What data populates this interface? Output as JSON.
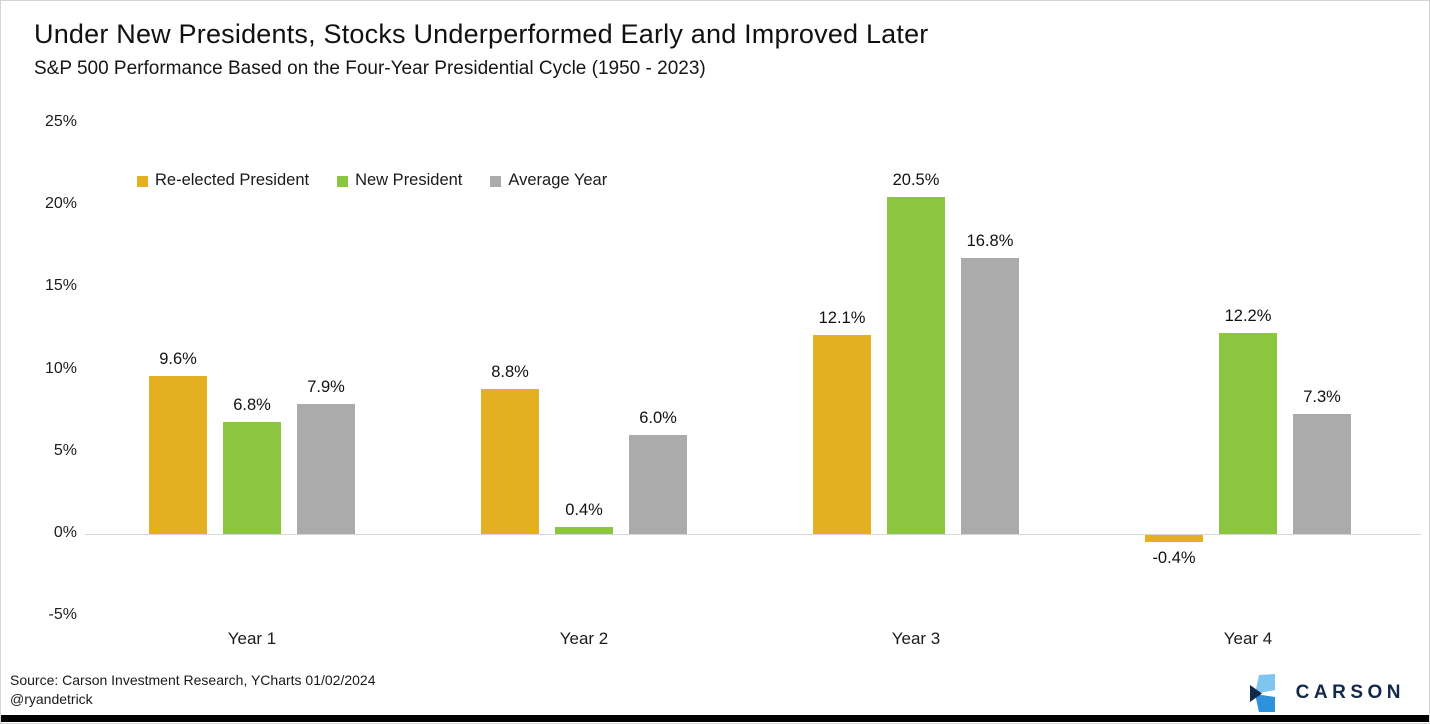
{
  "chart_data": {
    "type": "bar",
    "title": "Under New Presidents, Stocks Underperformed Early and Improved Later",
    "subtitle": "S&P 500 Performance Based on the Four-Year Presidential Cycle (1950 - 2023)",
    "categories": [
      "Year 1",
      "Year 2",
      "Year 3",
      "Year 4"
    ],
    "series": [
      {
        "name": "Re-elected President",
        "color": "#E4B022",
        "values": [
          9.6,
          8.8,
          12.1,
          -0.4
        ]
      },
      {
        "name": "New President",
        "color": "#8CC540",
        "values": [
          6.8,
          0.4,
          20.5,
          12.2
        ]
      },
      {
        "name": "Average Year",
        "color": "#ABABAB",
        "values": [
          7.9,
          6.0,
          16.8,
          7.3
        ]
      }
    ],
    "y_ticks": [
      25,
      20,
      15,
      10,
      5,
      0,
      -5
    ],
    "y_tick_suffix": "%",
    "ylim": [
      -5,
      25
    ],
    "xlabel": "",
    "ylabel": "",
    "value_labels_shown": true,
    "value_label_suffix": "%",
    "legend_position": "top-left",
    "grid": false,
    "zero_line_color": "#D6D6D6"
  },
  "footer": {
    "source": "Source: Carson Investment Research, YCharts 01/02/2024",
    "handle": "@ryandetrick"
  },
  "branding": {
    "logo_text": "CARSON",
    "logo_mark": "carson-chevron-icon",
    "colors": {
      "navy": "#13294B",
      "light_blue": "#7EC5F0",
      "blue": "#2E91DC"
    }
  }
}
